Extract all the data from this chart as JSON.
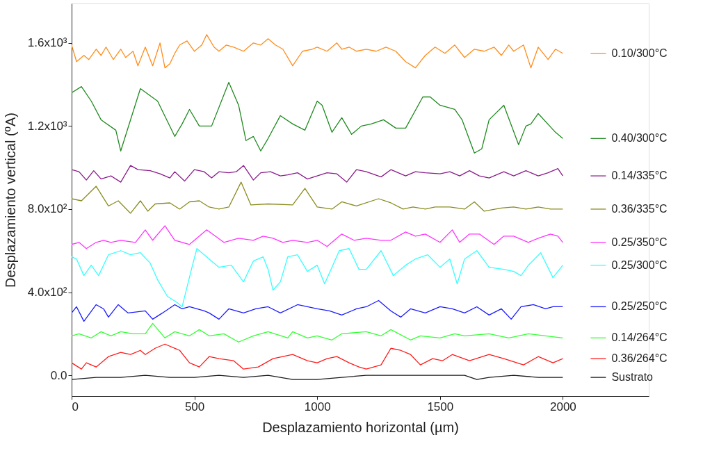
{
  "chart_data": {
    "type": "line",
    "xlabel": "Desplazamiento horizontal  (µm)",
    "ylabel": "Desplazamiento vertical  (ºA)",
    "xlim": [
      0,
      2350
    ],
    "xticks": [
      0,
      500,
      1000,
      1500,
      2000
    ],
    "ylim": [
      -100,
      1790
    ],
    "yticks": [
      {
        "value": 0,
        "label": "0.0"
      },
      {
        "value": 400,
        "label": "4.0x10²"
      },
      {
        "value": 800,
        "label": "8.0x10²"
      },
      {
        "value": 1200,
        "label": "1.2x10³"
      },
      {
        "value": 1600,
        "label": "1.6x10³"
      }
    ],
    "grid": false,
    "legend": "right",
    "marker": "none",
    "line_style": "solid",
    "series": [
      {
        "name": "0.10/300°C",
        "color": "#ff8c1a",
        "x": [
          0,
          20,
          50,
          70,
          100,
          120,
          140,
          170,
          200,
          220,
          250,
          270,
          300,
          330,
          360,
          380,
          400,
          420,
          440,
          470,
          500,
          530,
          550,
          580,
          600,
          630,
          660,
          700,
          740,
          770,
          800,
          830,
          860,
          900,
          940,
          980,
          1000,
          1040,
          1080,
          1100,
          1130,
          1160,
          1200,
          1240,
          1280,
          1320,
          1360,
          1400,
          1440,
          1480,
          1520,
          1560,
          1600,
          1640,
          1680,
          1720,
          1750,
          1780,
          1800,
          1840,
          1870,
          1900,
          1940,
          1970,
          2000
        ],
        "values": [
          1590,
          1510,
          1540,
          1520,
          1570,
          1540,
          1580,
          1520,
          1570,
          1530,
          1560,
          1490,
          1580,
          1490,
          1600,
          1480,
          1500,
          1550,
          1590,
          1610,
          1560,
          1590,
          1640,
          1580,
          1560,
          1590,
          1580,
          1560,
          1600,
          1590,
          1620,
          1590,
          1570,
          1490,
          1560,
          1570,
          1580,
          1560,
          1600,
          1570,
          1580,
          1560,
          1570,
          1560,
          1580,
          1560,
          1510,
          1480,
          1540,
          1580,
          1550,
          1590,
          1530,
          1570,
          1560,
          1580,
          1540,
          1590,
          1560,
          1590,
          1480,
          1580,
          1520,
          1570,
          1550
        ]
      },
      {
        "name": "0.40/300°C",
        "color": "#1f8a1f",
        "x": [
          0,
          40,
          80,
          120,
          180,
          200,
          280,
          350,
          420,
          450,
          480,
          520,
          570,
          640,
          680,
          710,
          740,
          770,
          800,
          850,
          900,
          950,
          1000,
          1020,
          1060,
          1100,
          1140,
          1180,
          1220,
          1270,
          1320,
          1360,
          1430,
          1460,
          1500,
          1560,
          1590,
          1640,
          1670,
          1700,
          1760,
          1820,
          1850,
          1870,
          1900,
          1970,
          2000
        ],
        "values": [
          1360,
          1390,
          1320,
          1230,
          1180,
          1080,
          1380,
          1320,
          1150,
          1210,
          1280,
          1200,
          1200,
          1410,
          1300,
          1130,
          1150,
          1080,
          1140,
          1250,
          1210,
          1180,
          1320,
          1300,
          1170,
          1240,
          1160,
          1200,
          1210,
          1230,
          1190,
          1190,
          1340,
          1340,
          1300,
          1280,
          1230,
          1070,
          1090,
          1230,
          1300,
          1110,
          1200,
          1210,
          1260,
          1170,
          1140
        ]
      },
      {
        "name": "0.14/335°C",
        "color": "#8b1a8b",
        "x": [
          0,
          30,
          60,
          90,
          120,
          160,
          200,
          240,
          270,
          320,
          360,
          400,
          420,
          460,
          500,
          540,
          570,
          600,
          640,
          670,
          700,
          740,
          770,
          810,
          850,
          880,
          920,
          960,
          1000,
          1040,
          1080,
          1120,
          1160,
          1200,
          1260,
          1300,
          1360,
          1400,
          1440,
          1500,
          1540,
          1580,
          1620,
          1660,
          1700,
          1760,
          1800,
          1850,
          1900,
          1940,
          1980,
          2000
        ],
        "values": [
          990,
          980,
          940,
          985,
          945,
          960,
          930,
          1010,
          990,
          985,
          970,
          950,
          980,
          935,
          990,
          980,
          950,
          980,
          975,
          980,
          1010,
          940,
          975,
          980,
          960,
          965,
          975,
          945,
          960,
          975,
          970,
          930,
          990,
          980,
          955,
          990,
          960,
          980,
          975,
          970,
          980,
          960,
          985,
          960,
          950,
          980,
          960,
          985,
          960,
          975,
          995,
          960
        ]
      },
      {
        "name": "0.36/335°C",
        "color": "#8b8b1f",
        "x": [
          0,
          40,
          100,
          150,
          190,
          240,
          280,
          310,
          340,
          400,
          440,
          480,
          520,
          560,
          600,
          640,
          690,
          730,
          800,
          900,
          950,
          1000,
          1060,
          1100,
          1160,
          1250,
          1300,
          1350,
          1390,
          1440,
          1480,
          1540,
          1600,
          1640,
          1680,
          1750,
          1800,
          1850,
          1900,
          1950,
          2000
        ],
        "values": [
          850,
          840,
          910,
          815,
          840,
          780,
          840,
          790,
          825,
          830,
          800,
          835,
          840,
          810,
          800,
          810,
          930,
          820,
          825,
          820,
          900,
          810,
          800,
          835,
          815,
          850,
          830,
          800,
          810,
          800,
          810,
          810,
          800,
          835,
          790,
          805,
          810,
          800,
          810,
          800,
          800
        ]
      },
      {
        "name": "0.25/350°C",
        "color": "#ff33ff",
        "x": [
          0,
          30,
          60,
          100,
          130,
          160,
          200,
          260,
          300,
          330,
          380,
          420,
          480,
          550,
          620,
          680,
          740,
          780,
          820,
          860,
          900,
          960,
          1000,
          1040,
          1100,
          1150,
          1200,
          1260,
          1300,
          1360,
          1400,
          1440,
          1500,
          1550,
          1580,
          1620,
          1660,
          1720,
          1760,
          1800,
          1860,
          1900,
          1950,
          1980,
          2000
        ],
        "values": [
          630,
          640,
          610,
          640,
          650,
          640,
          650,
          640,
          700,
          650,
          720,
          650,
          630,
          700,
          640,
          660,
          650,
          670,
          660,
          640,
          650,
          640,
          650,
          620,
          680,
          650,
          660,
          650,
          650,
          690,
          670,
          680,
          640,
          700,
          640,
          680,
          680,
          630,
          670,
          670,
          640,
          660,
          680,
          670,
          640
        ]
      },
      {
        "name": "0.25/300°C",
        "color": "#33ffff",
        "x": [
          0,
          20,
          50,
          80,
          110,
          150,
          200,
          240,
          280,
          320,
          350,
          390,
          430,
          450,
          490,
          510,
          560,
          600,
          650,
          700,
          740,
          780,
          800,
          820,
          850,
          880,
          920,
          960,
          1000,
          1030,
          1090,
          1130,
          1170,
          1200,
          1260,
          1310,
          1360,
          1400,
          1450,
          1500,
          1540,
          1570,
          1600,
          1650,
          1700,
          1760,
          1800,
          1830,
          1860,
          1910,
          1960,
          2000
        ],
        "values": [
          570,
          560,
          480,
          530,
          480,
          580,
          600,
          580,
          590,
          540,
          460,
          380,
          350,
          330,
          520,
          610,
          560,
          520,
          530,
          450,
          550,
          570,
          510,
          410,
          450,
          570,
          580,
          500,
          530,
          440,
          600,
          610,
          510,
          510,
          600,
          480,
          530,
          560,
          580,
          520,
          560,
          440,
          560,
          600,
          520,
          510,
          500,
          480,
          530,
          590,
          470,
          530
        ]
      },
      {
        "name": "0.25/250°C",
        "color": "#1a1aff",
        "x": [
          0,
          20,
          50,
          100,
          130,
          150,
          190,
          230,
          300,
          330,
          370,
          420,
          450,
          480,
          540,
          560,
          600,
          640,
          700,
          750,
          800,
          850,
          920,
          1000,
          1050,
          1100,
          1160,
          1200,
          1250,
          1300,
          1340,
          1380,
          1440,
          1500,
          1550,
          1600,
          1650,
          1700,
          1750,
          1790,
          1830,
          1880,
          1930,
          1960,
          2000
        ],
        "values": [
          300,
          330,
          260,
          340,
          320,
          280,
          340,
          300,
          310,
          270,
          300,
          340,
          320,
          330,
          310,
          300,
          270,
          320,
          300,
          320,
          330,
          300,
          340,
          320,
          310,
          290,
          320,
          330,
          360,
          310,
          280,
          320,
          300,
          330,
          320,
          300,
          330,
          290,
          320,
          270,
          330,
          340,
          320,
          330,
          330
        ]
      },
      {
        "name": "0.14/264°C",
        "color": "#33ff33",
        "x": [
          0,
          30,
          80,
          120,
          160,
          200,
          250,
          300,
          330,
          380,
          420,
          480,
          520,
          560,
          620,
          680,
          740,
          800,
          880,
          900,
          960,
          1000,
          1060,
          1100,
          1200,
          1260,
          1300,
          1380,
          1420,
          1500,
          1560,
          1600,
          1700,
          1780,
          1860,
          1930,
          2000
        ],
        "values": [
          190,
          200,
          180,
          210,
          190,
          210,
          200,
          200,
          250,
          180,
          210,
          190,
          220,
          190,
          200,
          160,
          190,
          210,
          180,
          210,
          180,
          190,
          170,
          200,
          210,
          190,
          220,
          170,
          190,
          180,
          200,
          190,
          200,
          180,
          200,
          190,
          180
        ]
      },
      {
        "name": "0.36/264°C",
        "color": "#ff1a1a",
        "x": [
          0,
          40,
          60,
          100,
          150,
          200,
          240,
          280,
          300,
          340,
          380,
          440,
          480,
          520,
          560,
          600,
          660,
          700,
          760,
          820,
          900,
          960,
          1000,
          1040,
          1080,
          1130,
          1170,
          1200,
          1260,
          1300,
          1340,
          1380,
          1420,
          1470,
          1510,
          1550,
          1620,
          1700,
          1760,
          1840,
          1900,
          1960,
          2000
        ],
        "values": [
          60,
          30,
          60,
          40,
          90,
          110,
          100,
          120,
          100,
          130,
          150,
          120,
          60,
          40,
          90,
          80,
          70,
          30,
          40,
          80,
          100,
          70,
          60,
          80,
          90,
          60,
          40,
          30,
          50,
          130,
          120,
          100,
          50,
          80,
          70,
          100,
          70,
          100,
          80,
          50,
          90,
          60,
          80
        ]
      },
      {
        "name": "Sustrato",
        "color": "#1a1a1a",
        "x": [
          0,
          100,
          200,
          300,
          400,
          500,
          600,
          700,
          800,
          900,
          1000,
          1100,
          1200,
          1300,
          1400,
          1600,
          1650,
          1700,
          1800,
          1900,
          2000
        ],
        "values": [
          -20,
          -10,
          -10,
          0,
          -10,
          -10,
          0,
          -10,
          0,
          -20,
          -20,
          -10,
          0,
          0,
          0,
          0,
          -20,
          -10,
          0,
          -10,
          -10
        ]
      }
    ]
  }
}
